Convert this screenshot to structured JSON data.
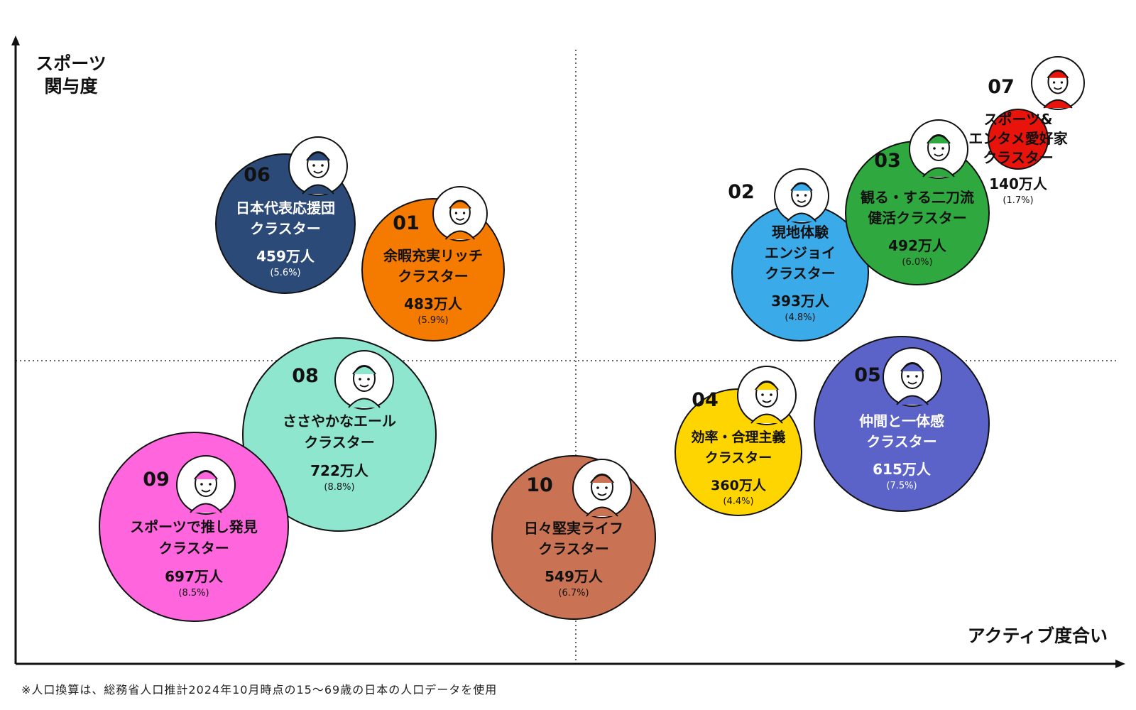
{
  "chart_data": {
    "type": "scatter",
    "xlabel": "アクティブ度合い",
    "ylabel": [
      "スポーツ",
      "関与度"
    ],
    "note": "※人口換算は、総務省人口推計2024年10月時点の15〜69歳の日本の人口データを使用",
    "clusters": [
      {
        "id": "01",
        "name": [
          "余暇充実リッチ",
          "クラスター"
        ],
        "population": "483万人",
        "share": "(5.9%)",
        "share_value": 5.9,
        "color": "#F47B00",
        "text_color": "#111111",
        "avatar": "glasses-man-avatar"
      },
      {
        "id": "02",
        "name": [
          "現地体験",
          "エンジョイ",
          "クラスター"
        ],
        "population": "393万人",
        "share": "(4.8%)",
        "share_value": 4.8,
        "color": "#3BAAE8",
        "text_color": "#111111",
        "avatar": "smiling-man-avatar"
      },
      {
        "id": "03",
        "name": [
          "観る・する二刀流",
          "健活クラスター"
        ],
        "population": "492万人",
        "share": "(6.0%)",
        "share_value": 6.0,
        "color": "#2FA93F",
        "text_color": "#111111",
        "avatar": "green-hair-man-avatar"
      },
      {
        "id": "04",
        "name": [
          "効率・合理主義",
          "クラスター"
        ],
        "population": "360万人",
        "share": "(4.4%)",
        "share_value": 4.4,
        "color": "#FFD500",
        "text_color": "#111111",
        "avatar": "blonde-man-avatar"
      },
      {
        "id": "05",
        "name": [
          "仲間と一体感",
          "クラスター"
        ],
        "population": "615万人",
        "share": "(7.5%)",
        "share_value": 7.5,
        "color": "#5B63C9",
        "text_color": "#ffffff",
        "avatar": "cheering-woman-avatar"
      },
      {
        "id": "06",
        "name": [
          "日本代表応援団",
          "クラスター"
        ],
        "population": "459万人",
        "share": "(5.6%)",
        "share_value": 5.6,
        "color": "#2C4A78",
        "text_color": "#ffffff",
        "avatar": "older-man-avatar"
      },
      {
        "id": "07",
        "name": [
          "スポーツ&",
          "エンタメ愛好家",
          "クラスター"
        ],
        "population": "140万人",
        "share": "(1.7%)",
        "share_value": 1.7,
        "color": "#E8140C",
        "text_color": "#111111",
        "avatar": "fan-hat-avatar"
      },
      {
        "id": "08",
        "name": [
          "ささやかなエール",
          "クラスター"
        ],
        "population": "722万人",
        "share": "(8.8%)",
        "share_value": 8.8,
        "color": "#8EE6CF",
        "text_color": "#111111",
        "avatar": "turban-woman-avatar"
      },
      {
        "id": "09",
        "name": [
          "スポーツで推し発見",
          "クラスター"
        ],
        "population": "697万人",
        "share": "(8.5%)",
        "share_value": 8.5,
        "color": "#FF66DD",
        "text_color": "#111111",
        "avatar": "pink-hair-woman-avatar"
      },
      {
        "id": "10",
        "name": [
          "日々堅実ライフ",
          "クラスター"
        ],
        "population": "549万人",
        "share": "(6.7%)",
        "share_value": 6.7,
        "color": "#C97354",
        "text_color": "#111111",
        "avatar": "surprised-woman-avatar"
      }
    ]
  }
}
